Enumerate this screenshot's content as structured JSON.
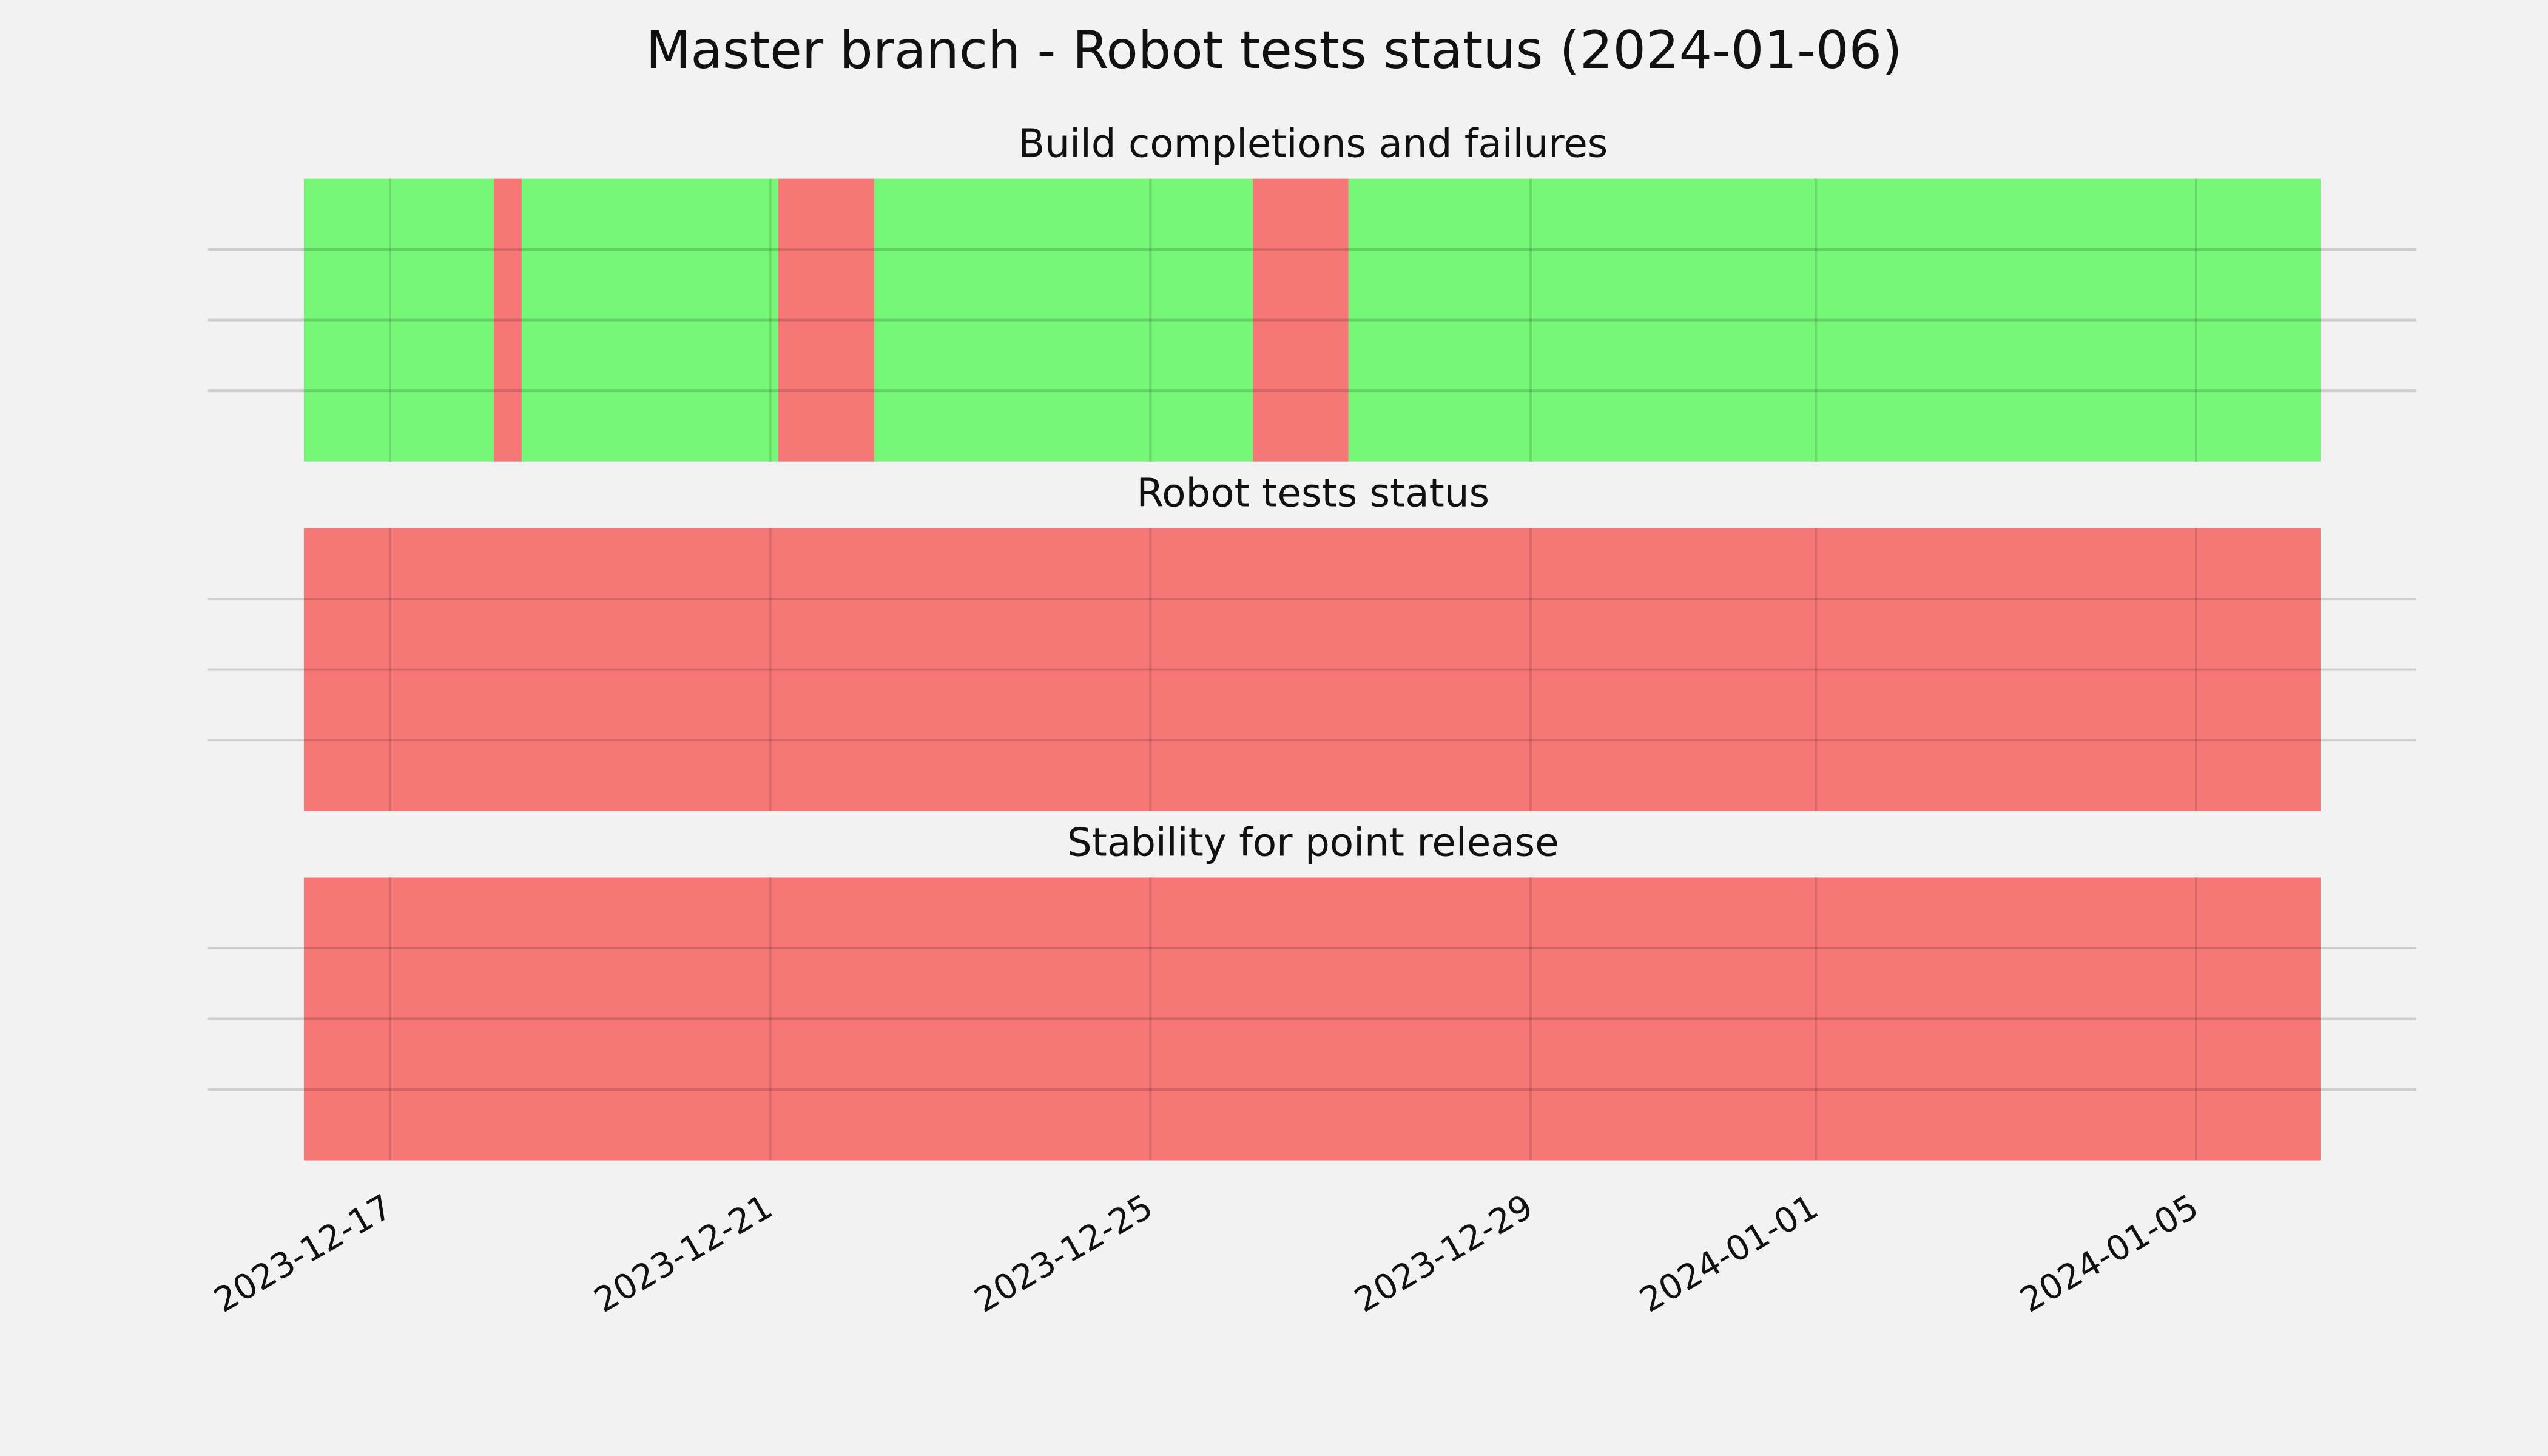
{
  "chart_data": {
    "type": "timeline",
    "title": "Master branch - Robot tests status (2024-01-06)",
    "xlim": [
      "2023-12-16T02:15",
      "2024-01-06T07:25"
    ],
    "xticks": [
      "2023-12-17",
      "2023-12-21",
      "2023-12-25",
      "2023-12-29",
      "2024-01-01",
      "2024-01-05"
    ],
    "ylim": [
      0,
      1
    ],
    "yticks": [
      0.25,
      0.5,
      0.75
    ],
    "grid": true,
    "panels": [
      {
        "title": "Build completions and failures",
        "spans": [
          {
            "start": "2023-12-16T02:15",
            "end": "2023-12-18T02:15",
            "color": "#77f777"
          },
          {
            "start": "2023-12-18T02:15",
            "end": "2023-12-18T09:15",
            "color": "#f77777"
          },
          {
            "start": "2023-12-18T09:15",
            "end": "2023-12-21T02:00",
            "color": "#77f777"
          },
          {
            "start": "2023-12-21T02:00",
            "end": "2023-12-22T02:15",
            "color": "#f77777"
          },
          {
            "start": "2023-12-22T02:15",
            "end": "2023-12-26T01:50",
            "color": "#77f777"
          },
          {
            "start": "2023-12-26T01:50",
            "end": "2023-12-27T02:00",
            "color": "#f77777"
          },
          {
            "start": "2023-12-27T02:00",
            "end": "2024-01-06T07:25",
            "color": "#77f777"
          }
        ]
      },
      {
        "title": "Robot tests status",
        "spans": [
          {
            "start": "2023-12-16T02:15",
            "end": "2024-01-06T07:25",
            "color": "#f77777"
          }
        ]
      },
      {
        "title": "Stability for point release",
        "spans": [
          {
            "start": "2023-12-16T02:15",
            "end": "2024-01-06T07:25",
            "color": "#f77777"
          }
        ]
      }
    ]
  }
}
